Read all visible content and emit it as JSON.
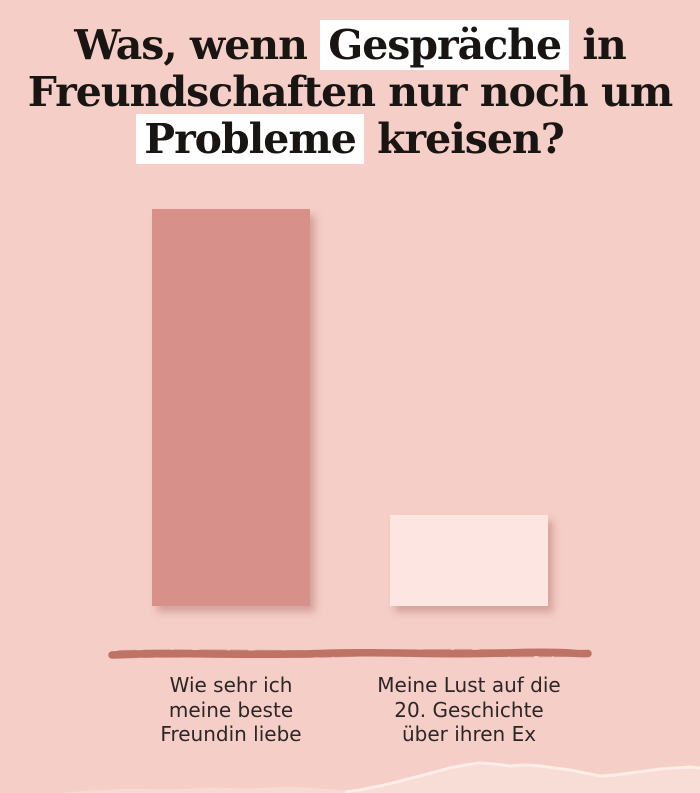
{
  "title": {
    "line1_pre": "Was, wenn",
    "line1_highlight": "Gespräche",
    "line1_post": "in",
    "line2": "Freundschaften nur noch um",
    "line3_highlight": "Probleme",
    "line3_post": "kreisen?",
    "full": "Was, wenn Gespräche in Freundschaften nur noch um Probleme kreisen?"
  },
  "labels": {
    "bar1": [
      "Wie sehr ich",
      "meine beste",
      "Freundin liebe"
    ],
    "bar2": [
      "Meine Lust auf die",
      "20. Geschichte",
      "über ihren Ex"
    ]
  },
  "chart_data": {
    "type": "bar",
    "title": "Was, wenn Gespräche in Freundschaften nur noch um Probleme kreisen?",
    "highlighted_words": [
      "Gespräche",
      "Probleme"
    ],
    "categories": [
      "Wie sehr ich meine beste Freundin liebe",
      "Meine Lust auf die 20. Geschichte über ihren Ex"
    ],
    "values": [
      100,
      23
    ],
    "ylim": [
      0,
      100
    ],
    "xlabel": "",
    "ylabel": "",
    "grid": false,
    "legend": false,
    "bar_colors": [
      "#d8908a",
      "#fde5e1"
    ],
    "axis_style": "hand-drawn brush stroke, no ticks, no value labels"
  },
  "colors": {
    "background": "#f5cec7",
    "bar1": "#d8908a",
    "bar2": "#fde5e1",
    "axis_line": "#bf7266",
    "title_text": "#191513",
    "label_text": "#2b2726",
    "highlight_bg": "#ffffff",
    "torn_paper": "#f8ddd6",
    "torn_paper_edge": "#fdece8"
  }
}
